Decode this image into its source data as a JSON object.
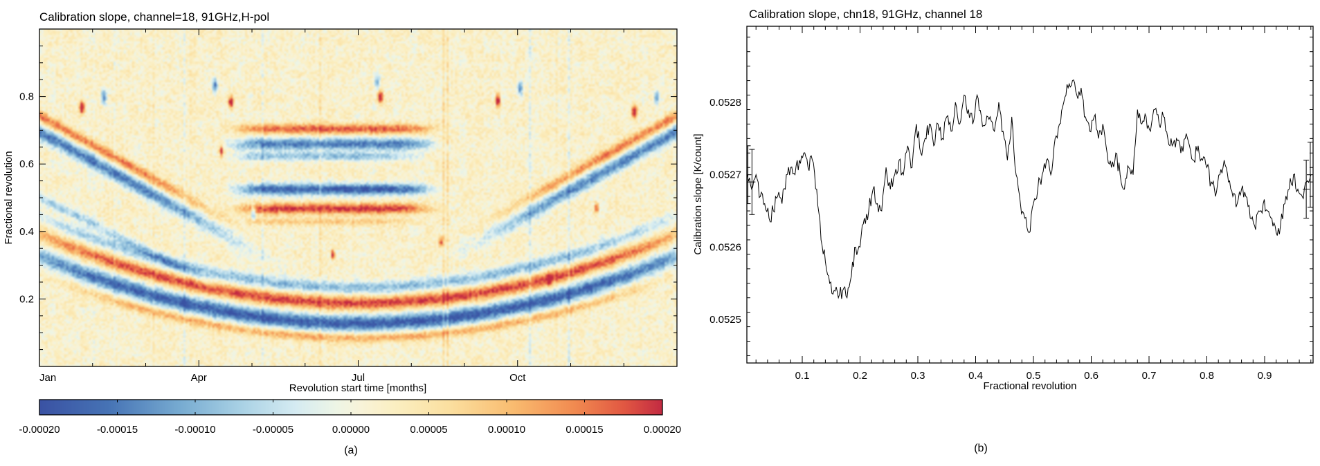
{
  "figure": {
    "background": "#ffffff",
    "caption_a": "(a)",
    "caption_b": "(b)"
  },
  "panel_a": {
    "title": "Calibration slope, channel=18, 91GHz,H-pol",
    "xlabel": "Revolution start time [months]",
    "ylabel": "Fractional revolution",
    "x_ticks": [
      "Jan",
      "Apr",
      "Jul",
      "Oct"
    ],
    "y_ticks": [
      "0.2",
      "0.4",
      "0.6",
      "0.8"
    ],
    "colorbar": {
      "tick_labels": [
        "-0.00020",
        "-0.00015",
        "-0.00010",
        "-0.00005",
        "0.00000",
        "0.00005",
        "0.00010",
        "0.00015",
        "0.00020"
      ]
    }
  },
  "panel_b": {
    "title": "Calibration slope, chn18, 91GHz, channel 18",
    "xlabel": "Fractional revolution",
    "ylabel": "Calibration slope [K/count]",
    "x_ticks": [
      "0.1",
      "0.2",
      "0.3",
      "0.4",
      "0.5",
      "0.6",
      "0.7",
      "0.8",
      "0.9"
    ],
    "y_ticks": [
      "0.0525",
      "0.0526",
      "0.0527",
      "0.0528"
    ]
  },
  "chart_data": [
    {
      "type": "heatmap",
      "title": "Calibration slope, channel=18, 91GHz,H-pol",
      "xlabel": "Revolution start time [months]",
      "ylabel": "Fractional revolution",
      "x_tick_labels": [
        "Jan",
        "Apr",
        "Jul",
        "Oct"
      ],
      "x_span": "one year, Jan through Dec",
      "y_tick_values": [
        0.2,
        0.4,
        0.6,
        0.8
      ],
      "ylim": [
        0,
        1
      ],
      "value_lim": [
        -0.0002,
        0.0002
      ],
      "colorbar_tick_values": [
        -0.0002,
        -0.00015,
        -0.0001,
        -5e-05,
        0,
        5e-05,
        0.0001,
        0.00015,
        0.0002
      ],
      "colormap": "RdYlBu_r",
      "colormap_stops": [
        [
          -1,
          "#3A52A3"
        ],
        [
          -0.78,
          "#4673B5"
        ],
        [
          -0.55,
          "#77ABD1"
        ],
        [
          -0.35,
          "#AAD2E5"
        ],
        [
          -0.18,
          "#D5EBF2"
        ],
        [
          -0.05,
          "#EDF5E6"
        ],
        [
          0.03,
          "#F8F3D9"
        ],
        [
          0.14,
          "#FBEFC2"
        ],
        [
          0.32,
          "#FBDF9F"
        ],
        [
          0.52,
          "#F9BC70"
        ],
        [
          0.72,
          "#F18A50"
        ],
        [
          0.88,
          "#E15742"
        ],
        [
          1,
          "#C32B42"
        ]
      ],
      "features": {
        "note": "amp units are fractions of value_lim max (1.0 = 0.0002 K/count); t is fraction of year; f is fractional revolution",
        "noise": {
          "warm_bias": 0.07,
          "speckle": 0.26,
          "mottle": 0.12,
          "column": 0.06,
          "stripe": 0.45
        },
        "bands": [
          {
            "kind": "parab",
            "y_min": 0.125,
            "curv": 0.8,
            "w": 0.024,
            "amp": -1.0,
            "env_c": 0.5,
            "env_w": 0.55,
            "env_p": 8
          },
          {
            "kind": "parab",
            "y_min": 0.185,
            "curv": 0.82,
            "w": 0.02,
            "amp": 0.85,
            "env_c": 0.5,
            "env_w": 0.52,
            "env_p": 8
          },
          {
            "kind": "parab",
            "y_min": 0.232,
            "curv": 0.85,
            "w": 0.018,
            "amp": -0.55,
            "env_c": 0.5,
            "env_w": 0.5,
            "env_p": 8
          },
          {
            "kind": "parab",
            "y_min": 0.082,
            "curv": 0.75,
            "w": 0.014,
            "amp": 0.5,
            "env_c": 0.5,
            "env_w": 0.45,
            "env_p": 8
          },
          {
            "kind": "diag",
            "y0": 0.695,
            "slope": -1.05,
            "w": 0.022,
            "amp": -0.85,
            "env_c": 0.04,
            "env_w": 0.26,
            "env_p": 4
          },
          {
            "kind": "diag",
            "y0": 0.742,
            "slope": -1.05,
            "w": 0.017,
            "amp": 0.7,
            "env_c": 0.03,
            "env_w": 0.24,
            "env_p": 4
          },
          {
            "kind": "diag",
            "y0": 0.5,
            "slope": -0.95,
            "w": 0.015,
            "amp": -0.45,
            "env_c": 0.05,
            "env_w": 0.22,
            "env_p": 4
          },
          {
            "kind": "diag",
            "y0": -0.355,
            "slope": 1.05,
            "w": 0.022,
            "amp": -0.8,
            "env_c": 0.96,
            "env_w": 0.26,
            "env_p": 4
          },
          {
            "kind": "diag",
            "y0": -0.308,
            "slope": 1.05,
            "w": 0.017,
            "amp": 0.65,
            "env_c": 0.97,
            "env_w": 0.24,
            "env_p": 4
          },
          {
            "kind": "flat",
            "y": 0.705,
            "w": 0.015,
            "amp": 0.75,
            "env_c": 0.46,
            "env_w": 0.155,
            "env_p": 8
          },
          {
            "kind": "flat",
            "y": 0.66,
            "w": 0.018,
            "amp": -0.85,
            "env_c": 0.46,
            "env_w": 0.155,
            "env_p": 8
          },
          {
            "kind": "flat",
            "y": 0.623,
            "w": 0.013,
            "amp": -0.5,
            "env_c": 0.45,
            "env_w": 0.14,
            "env_p": 8
          },
          {
            "kind": "flat",
            "y": 0.525,
            "w": 0.017,
            "amp": -1.0,
            "env_c": 0.46,
            "env_w": 0.15,
            "env_p": 8
          },
          {
            "kind": "flat",
            "y": 0.467,
            "w": 0.016,
            "amp": 0.9,
            "env_c": 0.46,
            "env_w": 0.15,
            "env_p": 8
          },
          {
            "kind": "flat",
            "y": 0.428,
            "w": 0.011,
            "amp": 0.35,
            "env_c": 0.45,
            "env_w": 0.13,
            "env_p": 8
          }
        ],
        "spots": [
          [
            0.065,
            0.77,
            0.004,
            0.018,
            1.3
          ],
          [
            0.3,
            0.785,
            0.004,
            0.018,
            1.2
          ],
          [
            0.535,
            0.8,
            0.004,
            0.018,
            1.2
          ],
          [
            0.72,
            0.79,
            0.004,
            0.018,
            1.2
          ],
          [
            0.935,
            0.755,
            0.004,
            0.018,
            1.3
          ],
          [
            0.1,
            0.8,
            0.004,
            0.02,
            -0.9
          ],
          [
            0.275,
            0.835,
            0.004,
            0.02,
            -0.8
          ],
          [
            0.53,
            0.845,
            0.004,
            0.02,
            -0.7
          ],
          [
            0.755,
            0.825,
            0.004,
            0.02,
            -0.8
          ],
          [
            0.97,
            0.8,
            0.004,
            0.02,
            -0.7
          ],
          [
            0.285,
            0.64,
            0.003,
            0.015,
            1.1
          ],
          [
            0.46,
            0.33,
            0.003,
            0.015,
            1.0
          ],
          [
            0.63,
            0.37,
            0.003,
            0.015,
            0.9
          ],
          [
            0.8,
            0.255,
            0.003,
            0.015,
            1.0
          ],
          [
            0.335,
            0.455,
            0.003,
            0.02,
            -0.9
          ],
          [
            0.875,
            0.47,
            0.003,
            0.015,
            0.9
          ]
        ]
      }
    },
    {
      "type": "line",
      "title": "Calibration slope, chn18, 91GHz, channel 18",
      "xlabel": "Fractional revolution",
      "ylabel": "Calibration slope [K/count]",
      "xlim": [
        0,
        0.985
      ],
      "ylim": [
        0.05244,
        0.05291
      ],
      "x_tick_values": [
        0.1,
        0.2,
        0.3,
        0.4,
        0.5,
        0.6,
        0.7,
        0.8,
        0.9
      ],
      "x_minor_step": 0.02,
      "y_tick_values": [
        0.0525,
        0.0526,
        0.0527,
        0.0528
      ],
      "y_minor_step": 2e-05,
      "line_color": "#000000",
      "points": [
        [
          0.005,
          0.0527
        ],
        [
          0.0125,
          0.05268
        ],
        [
          0.02,
          0.0527
        ],
        [
          0.0275,
          0.05267
        ],
        [
          0.035,
          0.05266
        ],
        [
          0.0425,
          0.05264
        ],
        [
          0.05,
          0.05265
        ],
        [
          0.0575,
          0.05267
        ],
        [
          0.065,
          0.05266
        ],
        [
          0.0725,
          0.0527
        ],
        [
          0.08,
          0.05271
        ],
        [
          0.0875,
          0.0527
        ],
        [
          0.095,
          0.05272
        ],
        [
          0.1025,
          0.05273
        ],
        [
          0.11,
          0.05271
        ],
        [
          0.1175,
          0.05272
        ],
        [
          0.125,
          0.05268
        ],
        [
          0.1325,
          0.05261
        ],
        [
          0.14,
          0.05258
        ],
        [
          0.1475,
          0.05255
        ],
        [
          0.155,
          0.05254
        ],
        [
          0.1625,
          0.05253
        ],
        [
          0.17,
          0.05254
        ],
        [
          0.1775,
          0.05253
        ],
        [
          0.185,
          0.05256
        ],
        [
          0.1925,
          0.0526
        ],
        [
          0.2,
          0.0526
        ],
        [
          0.2075,
          0.05264
        ],
        [
          0.215,
          0.05265
        ],
        [
          0.2225,
          0.05268
        ],
        [
          0.23,
          0.05266
        ],
        [
          0.2375,
          0.05265
        ],
        [
          0.245,
          0.05271
        ],
        [
          0.2525,
          0.05268
        ],
        [
          0.26,
          0.0527
        ],
        [
          0.2675,
          0.05272
        ],
        [
          0.275,
          0.0527
        ],
        [
          0.2825,
          0.05274
        ],
        [
          0.29,
          0.05271
        ],
        [
          0.2975,
          0.05277
        ],
        [
          0.305,
          0.05273
        ],
        [
          0.3125,
          0.05275
        ],
        [
          0.32,
          0.05277
        ],
        [
          0.3275,
          0.05274
        ],
        [
          0.335,
          0.05277
        ],
        [
          0.3425,
          0.05275
        ],
        [
          0.35,
          0.05278
        ],
        [
          0.3575,
          0.05276
        ],
        [
          0.365,
          0.0528
        ],
        [
          0.3725,
          0.05277
        ],
        [
          0.38,
          0.05281
        ],
        [
          0.3875,
          0.05279
        ],
        [
          0.395,
          0.05277
        ],
        [
          0.4025,
          0.05281
        ],
        [
          0.41,
          0.05278
        ],
        [
          0.4175,
          0.05277
        ],
        [
          0.425,
          0.05278
        ],
        [
          0.4325,
          0.05276
        ],
        [
          0.44,
          0.0528
        ],
        [
          0.4475,
          0.05276
        ],
        [
          0.455,
          0.05272
        ],
        [
          0.4625,
          0.05278
        ],
        [
          0.47,
          0.0527
        ],
        [
          0.4775,
          0.05266
        ],
        [
          0.485,
          0.05264
        ],
        [
          0.4925,
          0.05262
        ],
        [
          0.5,
          0.05266
        ],
        [
          0.5075,
          0.05268
        ],
        [
          0.515,
          0.0527
        ],
        [
          0.5225,
          0.05272
        ],
        [
          0.53,
          0.0527
        ],
        [
          0.5375,
          0.05275
        ],
        [
          0.545,
          0.05277
        ],
        [
          0.5525,
          0.0528
        ],
        [
          0.56,
          0.05282
        ],
        [
          0.5675,
          0.05283
        ],
        [
          0.575,
          0.05281
        ],
        [
          0.5825,
          0.05282
        ],
        [
          0.59,
          0.05278
        ],
        [
          0.5975,
          0.05276
        ],
        [
          0.605,
          0.05278
        ],
        [
          0.6125,
          0.05275
        ],
        [
          0.62,
          0.05277
        ],
        [
          0.6275,
          0.05273
        ],
        [
          0.635,
          0.05271
        ],
        [
          0.6425,
          0.05273
        ],
        [
          0.65,
          0.0527
        ],
        [
          0.6575,
          0.05268
        ],
        [
          0.665,
          0.05271
        ],
        [
          0.6725,
          0.0527
        ],
        [
          0.68,
          0.05279
        ],
        [
          0.6875,
          0.05277
        ],
        [
          0.695,
          0.05278
        ],
        [
          0.7025,
          0.05276
        ],
        [
          0.71,
          0.05279
        ],
        [
          0.7175,
          0.05277
        ],
        [
          0.725,
          0.05278
        ],
        [
          0.7325,
          0.05275
        ],
        [
          0.74,
          0.05274
        ],
        [
          0.7475,
          0.05275
        ],
        [
          0.755,
          0.05273
        ],
        [
          0.7625,
          0.05275
        ],
        [
          0.77,
          0.05274
        ],
        [
          0.7775,
          0.05272
        ],
        [
          0.785,
          0.05274
        ],
        [
          0.7925,
          0.05272
        ],
        [
          0.8,
          0.05271
        ],
        [
          0.8075,
          0.05269
        ],
        [
          0.815,
          0.05267
        ],
        [
          0.8225,
          0.0527
        ],
        [
          0.83,
          0.05272
        ],
        [
          0.8375,
          0.05269
        ],
        [
          0.845,
          0.05267
        ],
        [
          0.8525,
          0.05266
        ],
        [
          0.86,
          0.05268
        ],
        [
          0.8675,
          0.05267
        ],
        [
          0.875,
          0.05264
        ],
        [
          0.8825,
          0.05263
        ],
        [
          0.89,
          0.05265
        ],
        [
          0.8975,
          0.05266
        ],
        [
          0.905,
          0.05265
        ],
        [
          0.9125,
          0.05264
        ],
        [
          0.92,
          0.05262
        ],
        [
          0.9275,
          0.05263
        ],
        [
          0.935,
          0.05266
        ],
        [
          0.9425,
          0.05268
        ],
        [
          0.95,
          0.0527
        ],
        [
          0.9575,
          0.05268
        ],
        [
          0.965,
          0.05267
        ],
        [
          0.9725,
          0.05269
        ],
        [
          0.98,
          0.0527
        ]
      ],
      "error_bars": [
        {
          "x": 0.006,
          "y": 0.0527,
          "err": 4e-05
        },
        {
          "x": 0.013,
          "y": 0.05269,
          "err": 4.5e-05
        },
        {
          "x": 0.972,
          "y": 0.05268,
          "err": 4e-05
        },
        {
          "x": 0.979,
          "y": 0.0527,
          "err": 4.5e-05
        }
      ]
    }
  ]
}
